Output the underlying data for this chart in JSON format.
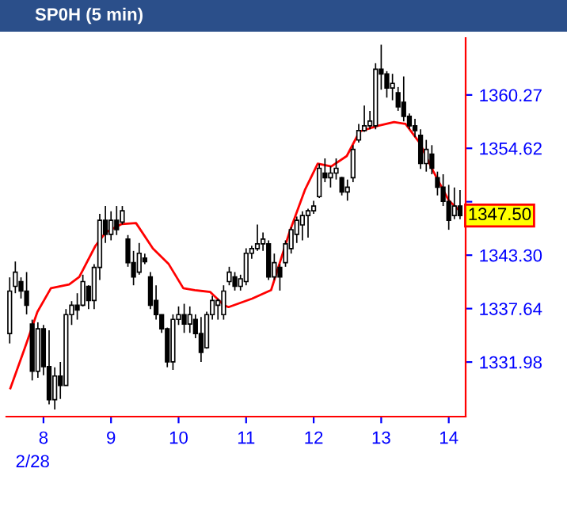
{
  "chart_data": {
    "type": "candlestick",
    "title": "SP0H (5 min)",
    "x": [
      7.5,
      7.583,
      7.667,
      7.75,
      7.833,
      7.917,
      8,
      8.083,
      8.167,
      8.25,
      8.333,
      8.417,
      8.5,
      8.583,
      8.667,
      8.75,
      8.833,
      8.917,
      9,
      9.083,
      9.167,
      9.25,
      9.333,
      9.417,
      9.5,
      9.583,
      9.667,
      9.75,
      9.833,
      9.917,
      10,
      10.083,
      10.167,
      10.25,
      10.333,
      10.417,
      10.5,
      10.583,
      10.667,
      10.75,
      10.833,
      10.917,
      11,
      11.083,
      11.167,
      11.25,
      11.333,
      11.417,
      11.5,
      11.583,
      11.667,
      11.75,
      11.833,
      11.917,
      12,
      12.083,
      12.167,
      12.25,
      12.333,
      12.417,
      12.5,
      12.583,
      12.667,
      12.75,
      12.833,
      12.917,
      13,
      13.083,
      13.167,
      13.25,
      13.333,
      13.417,
      13.5,
      13.583,
      13.667,
      13.75,
      13.833,
      13.917,
      14,
      14.083,
      14.167
    ],
    "ohlc": [
      [
        1335.0,
        1340.95,
        1333.95,
        1339.5
      ],
      [
        1340.0,
        1342.63,
        1339.27,
        1341.5
      ],
      [
        1340.5,
        1340.95,
        1338.71,
        1339.5
      ],
      [
        1339.5,
        1341.51,
        1337.03,
        1338.0
      ],
      [
        1336.0,
        1336.47,
        1330.03,
        1331.0
      ],
      [
        1331.0,
        1336.19,
        1330.31,
        1335.5
      ],
      [
        1335.5,
        1335.91,
        1330.59,
        1331.5
      ],
      [
        1331.5,
        1335.35,
        1327.51,
        1328.0
      ],
      [
        1328.0,
        1331.43,
        1326.95,
        1330.5
      ],
      [
        1330.5,
        1331.99,
        1328.07,
        1329.5
      ],
      [
        1329.5,
        1337.59,
        1329.47,
        1337.0
      ],
      [
        1337.0,
        1338.43,
        1335.91,
        1338.0
      ],
      [
        1338.0,
        1339.27,
        1336.47,
        1337.5
      ],
      [
        1338.0,
        1341.23,
        1337.87,
        1340.5
      ],
      [
        1340.0,
        1340.11,
        1337.59,
        1338.5
      ],
      [
        1338.5,
        1342.35,
        1337.59,
        1342.0
      ],
      [
        1342.0,
        1347.67,
        1340.67,
        1347.0
      ],
      [
        1347.0,
        1348.51,
        1344.59,
        1345.5
      ],
      [
        1345.5,
        1347.95,
        1344.87,
        1347.0
      ],
      [
        1347.0,
        1348.51,
        1345.43,
        1346.0
      ],
      [
        1346.8,
        1348.51,
        1346.55,
        1348.0
      ],
      [
        1345.0,
        1345.43,
        1342.07,
        1342.5
      ],
      [
        1342.5,
        1343.75,
        1340.11,
        1341.0
      ],
      [
        1341.5,
        1344.59,
        1341.23,
        1343.5
      ],
      [
        1343.0,
        1343.47,
        1342.35,
        1342.6
      ],
      [
        1341.0,
        1341.51,
        1337.59,
        1338.0
      ],
      [
        1338.5,
        1340.11,
        1336.47,
        1337.0
      ],
      [
        1337.0,
        1337.03,
        1335.07,
        1335.5
      ],
      [
        1335.5,
        1335.63,
        1331.43,
        1332.0
      ],
      [
        1332.0,
        1337.03,
        1331.15,
        1336.5
      ],
      [
        1336.5,
        1337.87,
        1335.91,
        1337.0
      ],
      [
        1337.0,
        1338.15,
        1335.07,
        1336.0
      ],
      [
        1336.0,
        1337.87,
        1335.07,
        1337.0
      ],
      [
        1336.5,
        1337.03,
        1334.51,
        1335.0
      ],
      [
        1335.0,
        1336.75,
        1331.99,
        1333.0
      ],
      [
        1333.5,
        1337.31,
        1333.39,
        1337.0
      ],
      [
        1337.0,
        1338.99,
        1336.47,
        1338.5
      ],
      [
        1338.0,
        1338.71,
        1336.47,
        1338.5
      ],
      [
        1337.0,
        1340.11,
        1336.47,
        1339.5
      ],
      [
        1340.5,
        1342.07,
        1340.11,
        1341.5
      ],
      [
        1341.0,
        1341.51,
        1339.55,
        1340.0
      ],
      [
        1340.0,
        1341.23,
        1339.55,
        1340.8
      ],
      [
        1340.5,
        1344.03,
        1340.11,
        1343.5
      ],
      [
        1343.5,
        1344.31,
        1342.91,
        1344.0
      ],
      [
        1344.0,
        1346.55,
        1343.75,
        1344.5
      ],
      [
        1344.5,
        1345.71,
        1343.75,
        1345.0
      ],
      [
        1344.5,
        1344.87,
        1340.67,
        1341.0
      ],
      [
        1341.0,
        1343.47,
        1340.67,
        1342.5
      ],
      [
        1342.0,
        1342.35,
        1339.55,
        1341.0
      ],
      [
        1342.5,
        1344.87,
        1342.07,
        1344.5
      ],
      [
        1344.0,
        1346.27,
        1343.47,
        1346.0
      ],
      [
        1345.5,
        1347.39,
        1344.59,
        1347.0
      ],
      [
        1346.5,
        1347.95,
        1344.87,
        1347.5
      ],
      [
        1347.5,
        1348.23,
        1345.15,
        1348.0
      ],
      [
        1348.0,
        1349.07,
        1347.67,
        1348.5
      ],
      [
        1349.5,
        1352.99,
        1349.35,
        1352.5
      ],
      [
        1352.0,
        1353.55,
        1351.03,
        1351.5
      ],
      [
        1351.5,
        1352.71,
        1350.47,
        1352.0
      ],
      [
        1352.0,
        1353.55,
        1351.31,
        1352.5
      ],
      [
        1351.5,
        1351.59,
        1349.63,
        1350.0
      ],
      [
        1350.0,
        1351.31,
        1349.07,
        1350.5
      ],
      [
        1351.5,
        1354.95,
        1351.03,
        1354.5
      ],
      [
        1355.5,
        1357.19,
        1355.23,
        1356.5
      ],
      [
        1356.5,
        1359.15,
        1356.35,
        1357.0
      ],
      [
        1357.0,
        1358.59,
        1356.63,
        1357.5
      ],
      [
        1357.0,
        1363.63,
        1356.63,
        1363.0
      ],
      [
        1363.0,
        1365.59,
        1360.83,
        1362.5
      ],
      [
        1362.5,
        1362.79,
        1359.99,
        1361.0
      ],
      [
        1361.0,
        1362.51,
        1359.71,
        1361.5
      ],
      [
        1360.5,
        1361.11,
        1358.59,
        1359.0
      ],
      [
        1359.5,
        1362.23,
        1357.47,
        1358.0
      ],
      [
        1358.0,
        1358.31,
        1356.63,
        1357.0
      ],
      [
        1357.0,
        1357.75,
        1355.79,
        1356.5
      ],
      [
        1356.0,
        1356.63,
        1352.43,
        1353.0
      ],
      [
        1353.0,
        1355.51,
        1352.15,
        1354.5
      ],
      [
        1354.0,
        1354.95,
        1351.87,
        1352.5
      ],
      [
        1351.5,
        1352.15,
        1349.63,
        1350.5
      ],
      [
        1350.5,
        1351.87,
        1348.51,
        1349.0
      ],
      [
        1349.0,
        1350.75,
        1345.99,
        1347.0
      ],
      [
        1347.5,
        1350.47,
        1347.11,
        1348.5
      ],
      [
        1348.5,
        1350.19,
        1347.11,
        1347.5
      ]
    ],
    "color": "#000000",
    "series": [
      {
        "type": "line",
        "color": "#ff0000",
        "x": [
          7.51,
          7.72,
          7.91,
          8.11,
          8.38,
          8.53,
          8.77,
          8.92,
          9.16,
          9.37,
          9.62,
          9.85,
          10.07,
          10.24,
          10.47,
          10.67,
          10.74,
          11.09,
          11.37,
          11.64,
          11.87,
          12.06,
          12.26,
          12.49,
          12.68,
          12.95,
          13.19,
          13.36,
          13.57,
          13.77,
          14.0,
          14.16
        ],
        "values": [
          1329.2,
          1333.4,
          1337.3,
          1339.8,
          1340.2,
          1341.0,
          1344.3,
          1345.7,
          1346.6,
          1346.7,
          1344.0,
          1342.4,
          1339.8,
          1339.6,
          1339.4,
          1338.0,
          1337.8,
          1338.7,
          1339.6,
          1345.7,
          1350.2,
          1353.0,
          1352.7,
          1353.8,
          1356.4,
          1357.0,
          1357.4,
          1357.2,
          1355.2,
          1352.2,
          1349.1,
          1348.0
        ]
      }
    ],
    "xlim": [
      7.45,
      14.25
    ],
    "xticks": [
      8,
      9,
      10,
      11,
      12,
      13,
      14
    ],
    "ylim": [
      1326.2,
      1366.3
    ],
    "yticks": [
      1331.98,
      1337.64,
      {
        "value": 1343.3,
        "label": "1343.30"
      },
      {
        "value": 1348.96,
        "label": null
      },
      1354.62,
      1360.27
    ],
    "annotations": [
      "2/28",
      {
        "text": "1347.50",
        "y": 1347.5
      }
    ],
    "grid": false,
    "legend": false
  }
}
